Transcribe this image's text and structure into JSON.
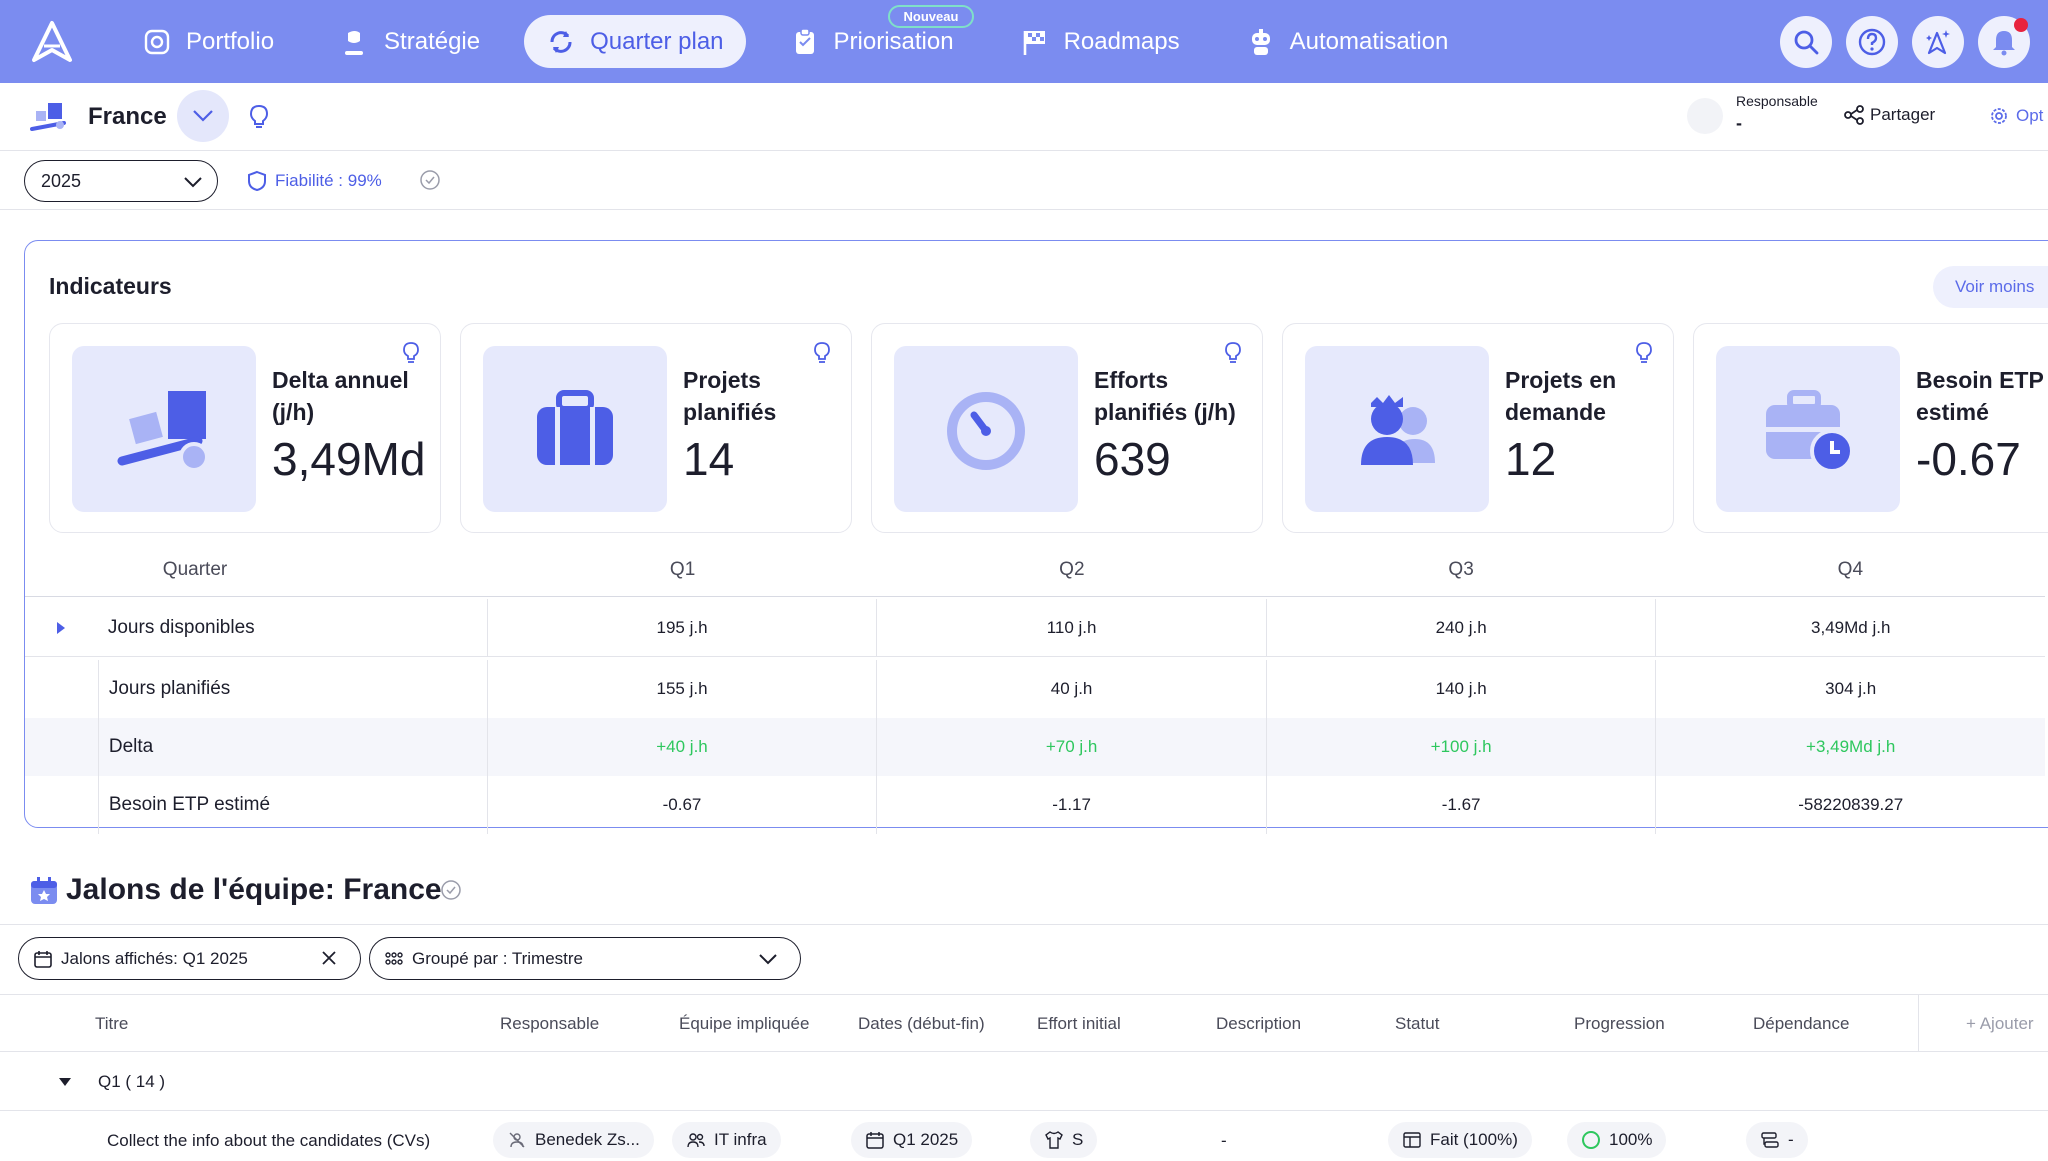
{
  "nav": {
    "items": [
      {
        "label": "Portfolio",
        "icon": "portfolio-icon"
      },
      {
        "label": "Stratégie",
        "icon": "strategy-icon"
      },
      {
        "label": "Quarter plan",
        "icon": "quarter-plan-icon"
      },
      {
        "label": "Priorisation",
        "icon": "priorisation-icon"
      },
      {
        "label": "Roadmaps",
        "icon": "roadmaps-icon"
      },
      {
        "label": "Automatisation",
        "icon": "automation-icon"
      }
    ],
    "active": "Quarter plan",
    "new_badge": "Nouveau"
  },
  "header": {
    "team": "France",
    "responsable_label": "Responsable",
    "responsable_value": "-",
    "share_label": "Partager",
    "options_label": "Opt"
  },
  "filters": {
    "year": "2025",
    "reliability": "Fiabilité : 99%"
  },
  "indicators": {
    "title": "Indicateurs",
    "toggle_label": "Voir moins",
    "cards": [
      {
        "label_l1": "Delta annuel",
        "label_l2": "(j/h)",
        "value": "3,49Md"
      },
      {
        "label_l1": "Projets",
        "label_l2": "planifiés",
        "value": "14"
      },
      {
        "label_l1": "Efforts",
        "label_l2": "planifiés (j/h)",
        "value": "639"
      },
      {
        "label_l1": "Projets en",
        "label_l2": "demande",
        "value": "12"
      },
      {
        "label_l1": "Besoin ETP",
        "label_l2": "estimé",
        "value": "-0.67"
      }
    ]
  },
  "quarter_table": {
    "header": {
      "label": "Quarter",
      "q": [
        "Q1",
        "Q2",
        "Q3",
        "Q4"
      ]
    },
    "rows": [
      {
        "label": "Jours disponibles",
        "values": [
          "195 j.h",
          "110 j.h",
          "240 j.h",
          "3,49Md j.h"
        ]
      },
      {
        "label": "Jours planifiés",
        "values": [
          "155 j.h",
          "40 j.h",
          "140 j.h",
          "304 j.h"
        ]
      },
      {
        "label": "Delta",
        "values": [
          "+40 j.h",
          "+70 j.h",
          "+100 j.h",
          "+3,49Md j.h"
        ]
      },
      {
        "label": "Besoin ETP estimé",
        "values": [
          "-0.67",
          "-1.17",
          "-1.67",
          "-58220839.27"
        ]
      }
    ]
  },
  "milestones": {
    "title": "Jalons de l'équipe: France",
    "filter_shown": "Jalons affichés: Q1 2025",
    "group_by": "Groupé par : Trimestre",
    "columns": [
      "Titre",
      "Responsable",
      "Équipe impliquée",
      "Dates (début-fin)",
      "Effort initial",
      "Description",
      "Statut",
      "Progression",
      "Dépendance",
      "+ Ajouter"
    ],
    "group_label": "Q1 ( 14 )",
    "row": {
      "title": "Collect the info about the candidates (CVs)",
      "owner": "Benedek Zs...",
      "team": "IT infra",
      "dates": "Q1 2025",
      "effort": "S",
      "description": "-",
      "status": "Fait (100%)",
      "progress": "100%",
      "dependency": "-"
    }
  },
  "colors": {
    "nav_bg": "#7b8cf0",
    "accent": "#4d5ee6",
    "positive": "#2ec75e",
    "notification": "#e8233f"
  }
}
